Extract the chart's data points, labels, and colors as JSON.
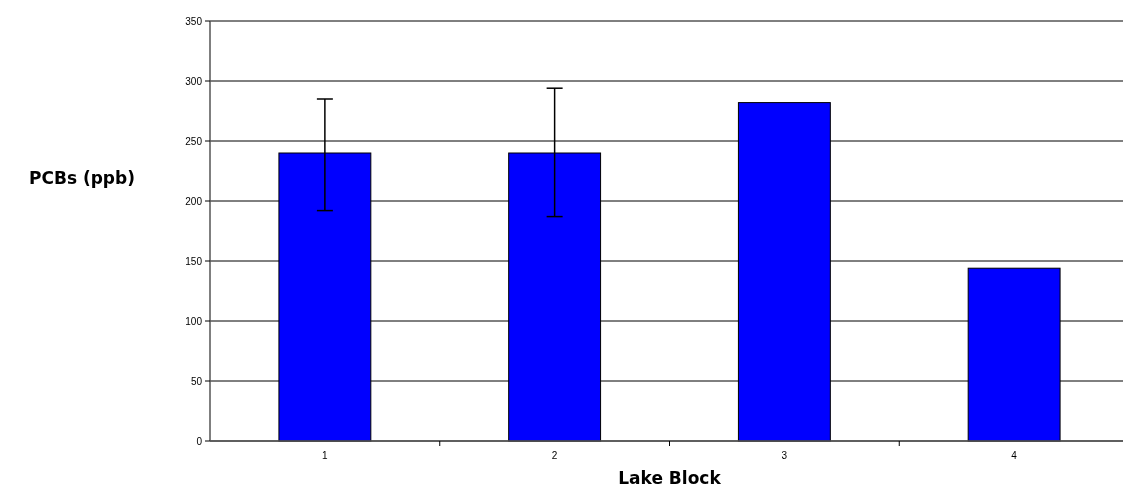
{
  "chart_data": {
    "type": "bar",
    "xlabel": "Lake Block",
    "ylabel": "PCBs (ppb)",
    "categories": [
      "1",
      "2",
      "3",
      "4"
    ],
    "values": [
      240,
      240,
      282,
      144
    ],
    "errors": [
      [
        192,
        285
      ],
      [
        187,
        294
      ],
      null,
      null
    ],
    "color": "#0000ff",
    "ylim": [
      0,
      350
    ],
    "yticks": [
      0,
      50,
      100,
      150,
      200,
      250,
      300,
      350
    ],
    "grid": "y"
  }
}
